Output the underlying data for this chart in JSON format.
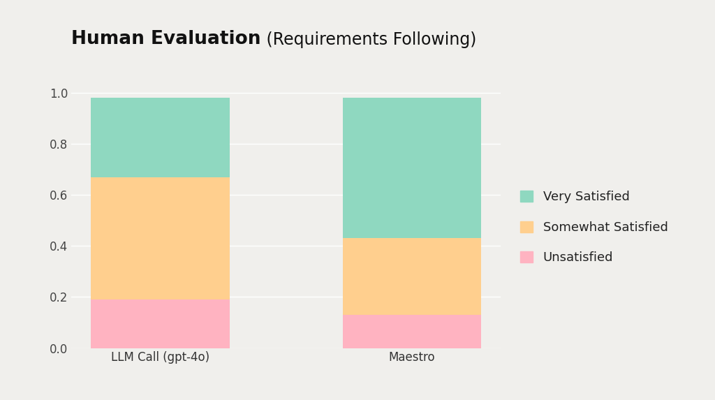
{
  "categories": [
    "LLM Call (gpt-4o)",
    "Maestro"
  ],
  "unsatisfied": [
    0.19,
    0.13
  ],
  "somewhat_satisfied": [
    0.48,
    0.3
  ],
  "very_satisfied": [
    0.31,
    0.55
  ],
  "color_unsatisfied": "#FFB3C1",
  "color_somewhat": "#FFCF8E",
  "color_very": "#8FD8C0",
  "background_color": "#F0EFEC",
  "title_bold": "Human Evaluation",
  "title_normal": " (Requirements Following)",
  "legend_labels": [
    "Very Satisfied",
    "Somewhat Satisfied",
    "Unsatisfied"
  ],
  "ylim": [
    0,
    1.05
  ],
  "yticks": [
    0.0,
    0.2,
    0.4,
    0.6,
    0.8,
    1.0
  ],
  "bar_width": 0.55
}
